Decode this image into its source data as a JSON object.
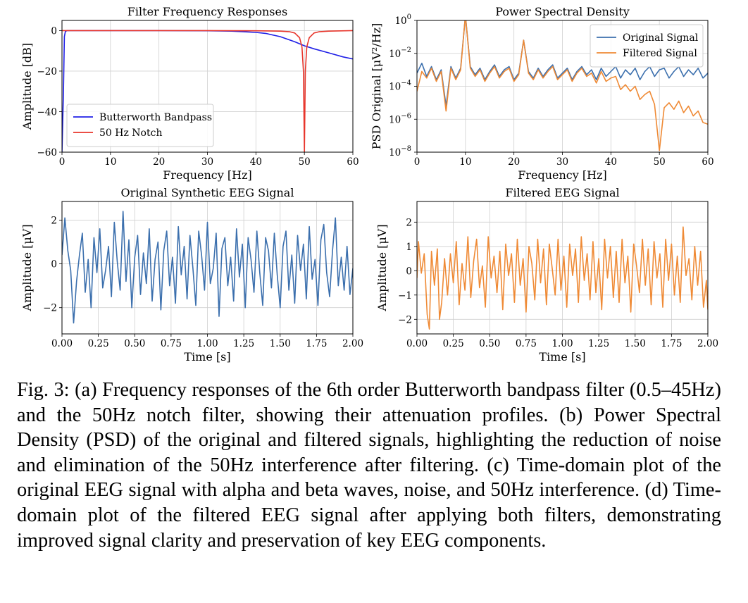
{
  "caption": "Fig. 3: (a) Frequency responses of the 6th order Butterworth bandpass filter (0.5–45Hz) and the 50Hz notch filter, showing their attenuation profiles. (b) Power Spectral Density (PSD) of the original and filtered signals, highlighting the reduction of noise and elimination of the 50Hz interference after filtering. (c) Time-domain plot of the original EEG signal with alpha and beta waves, noise, and 50Hz interference. (d) Time-domain plot of the filtered EEG signal after applying both filters, demonstrating improved signal clarity and preservation of key EEG components.",
  "colors": {
    "butterworth": "#1f1fe6",
    "notch": "#e8362c",
    "original": "#3b6fad",
    "filtered": "#ef8a35",
    "grid": "#d0d0d0"
  },
  "chart_data": [
    {
      "id": "a",
      "type": "line",
      "title": "Filter Frequency Responses",
      "xlabel": "Frequency [Hz]",
      "ylabel": "Amplitude [dB]",
      "xlim": [
        0,
        60
      ],
      "ylim": [
        -60,
        5
      ],
      "xticks": [
        0,
        10,
        20,
        30,
        40,
        50,
        60
      ],
      "xticklabels": [
        "0",
        "10",
        "20",
        "30",
        "40",
        "50",
        "60"
      ],
      "yticks": [
        0,
        -20,
        -40,
        -60
      ],
      "yticklabels": [
        "0",
        "−20",
        "−40",
        "−60"
      ],
      "grid": true,
      "legend_position": "lower-left",
      "series": [
        {
          "name": "Butterworth Bandpass",
          "color": "#1f1fe6",
          "x": [
            0,
            0.3,
            0.5,
            0.7,
            1,
            2,
            5,
            10,
            20,
            30,
            35,
            40,
            42,
            45,
            48,
            50,
            52,
            55,
            58,
            60
          ],
          "y": [
            -60,
            -30,
            -3,
            -0.5,
            0,
            0,
            0,
            0,
            0,
            -0.1,
            -0.3,
            -0.9,
            -1.4,
            -3,
            -5.5,
            -7.5,
            -9,
            -11,
            -13,
            -14
          ]
        },
        {
          "name": "50 Hz Notch",
          "color": "#e8362c",
          "x": [
            0,
            10,
            20,
            30,
            40,
            45,
            47,
            48,
            49,
            49.5,
            49.8,
            50,
            50.2,
            50.5,
            51,
            52,
            53,
            55,
            60
          ],
          "y": [
            0,
            0,
            0,
            0,
            -0.1,
            -0.3,
            -0.6,
            -1.2,
            -3.5,
            -8,
            -20,
            -60,
            -20,
            -8,
            -3.5,
            -1.2,
            -0.6,
            -0.3,
            0
          ]
        }
      ]
    },
    {
      "id": "b",
      "type": "line",
      "title": "Power Spectral Density",
      "xlabel": "Frequency [Hz]",
      "ylabel": "PSD Original [μV²/Hz]",
      "xlim": [
        0,
        60
      ],
      "ylim_log10": [
        -8,
        0
      ],
      "log_y": true,
      "xticks": [
        0,
        10,
        20,
        30,
        40,
        50,
        60
      ],
      "xticklabels": [
        "0",
        "10",
        "20",
        "30",
        "40",
        "50",
        "60"
      ],
      "yticks_log10": [
        0,
        -2,
        -4,
        -6,
        -8
      ],
      "ytick_bases": [
        "10",
        "10",
        "10",
        "10",
        "10"
      ],
      "ytick_exps": [
        "0",
        "−2",
        "−4",
        "−6",
        "−8"
      ],
      "grid": true,
      "legend_position": "top-right",
      "series": [
        {
          "name": "Original Signal",
          "color": "#3b6fad",
          "x": [
            0,
            1,
            2,
            3,
            4,
            5,
            6,
            7,
            8,
            9,
            10,
            11,
            12,
            13,
            14,
            15,
            16,
            17,
            18,
            19,
            20,
            21,
            22,
            23,
            24,
            25,
            26,
            27,
            28,
            29,
            30,
            31,
            32,
            33,
            34,
            35,
            36,
            37,
            38,
            39,
            40,
            41,
            42,
            43,
            44,
            45,
            46,
            47,
            48,
            49,
            50,
            51,
            52,
            53,
            54,
            55,
            56,
            57,
            58,
            59,
            60
          ],
          "log10_psd": [
            -3.2,
            -2.6,
            -3.4,
            -2.8,
            -3.6,
            -3.0,
            -5.2,
            -2.8,
            -3.5,
            -2.9,
            0.3,
            -2.8,
            -3.3,
            -2.9,
            -3.6,
            -3.1,
            -2.7,
            -3.4,
            -3.0,
            -2.8,
            -3.6,
            -3.2,
            -1.2,
            -3.1,
            -3.5,
            -2.9,
            -3.4,
            -3.0,
            -2.7,
            -3.5,
            -3.2,
            -2.9,
            -3.6,
            -3.1,
            -2.8,
            -3.3,
            -3.0,
            -3.6,
            -2.9,
            -3.4,
            -3.1,
            -2.8,
            -3.5,
            -3.0,
            -3.3,
            -2.9,
            -3.6,
            -3.1,
            -2.8,
            -3.4,
            -3.0,
            -2.9,
            -3.5,
            -3.1,
            -2.8,
            -3.4,
            -3.0,
            -3.3,
            -2.9,
            -3.5,
            -3.2
          ]
        },
        {
          "name": "Filtered Signal",
          "color": "#ef8a35",
          "x": [
            0,
            1,
            2,
            3,
            4,
            5,
            6,
            7,
            8,
            9,
            10,
            11,
            12,
            13,
            14,
            15,
            16,
            17,
            18,
            19,
            20,
            21,
            22,
            23,
            24,
            25,
            26,
            27,
            28,
            29,
            30,
            31,
            32,
            33,
            34,
            35,
            36,
            37,
            38,
            39,
            40,
            41,
            42,
            43,
            44,
            45,
            46,
            47,
            48,
            49,
            50,
            51,
            52,
            53,
            54,
            55,
            56,
            57,
            58,
            59,
            60
          ],
          "log10_psd": [
            -4.3,
            -3.1,
            -3.5,
            -2.9,
            -3.7,
            -3.1,
            -5.5,
            -2.9,
            -3.6,
            -3.0,
            0.3,
            -2.9,
            -3.4,
            -3.0,
            -3.7,
            -3.2,
            -2.8,
            -3.5,
            -3.1,
            -2.9,
            -3.7,
            -3.3,
            -1.2,
            -3.2,
            -3.6,
            -3.0,
            -3.5,
            -3.1,
            -2.8,
            -3.6,
            -3.3,
            -3.0,
            -3.7,
            -3.2,
            -2.9,
            -3.4,
            -3.2,
            -3.8,
            -3.1,
            -3.7,
            -3.5,
            -3.4,
            -4.2,
            -3.9,
            -4.3,
            -4.0,
            -4.8,
            -4.5,
            -4.3,
            -5.1,
            -7.9,
            -5.3,
            -5.0,
            -5.4,
            -4.9,
            -5.6,
            -5.2,
            -5.8,
            -5.5,
            -6.2,
            -6.3
          ]
        }
      ]
    },
    {
      "id": "c",
      "type": "line",
      "title": "Original Synthetic EEG Signal",
      "xlabel": "Time [s]",
      "ylabel": "Amplitude [μV]",
      "xlim": [
        0,
        2
      ],
      "ylim": [
        -3.2,
        2.85
      ],
      "xticks": [
        0,
        0.25,
        0.5,
        0.75,
        1,
        1.25,
        1.5,
        1.75,
        2
      ],
      "xticklabels": [
        "0.00",
        "0.25",
        "0.50",
        "0.75",
        "1.00",
        "1.25",
        "1.50",
        "1.75",
        "2.00"
      ],
      "yticks": [
        2,
        0,
        -2
      ],
      "yticklabels": [
        "2",
        "0",
        "−2"
      ],
      "grid": true,
      "series": [
        {
          "name": "",
          "color": "#3b6fad",
          "x": [
            0,
            0.02,
            0.04,
            0.06,
            0.08,
            0.1,
            0.12,
            0.14,
            0.16,
            0.18,
            0.2,
            0.22,
            0.24,
            0.26,
            0.28,
            0.3,
            0.32,
            0.34,
            0.36,
            0.38,
            0.4,
            0.42,
            0.44,
            0.46,
            0.48,
            0.5,
            0.52,
            0.54,
            0.56,
            0.58,
            0.6,
            0.62,
            0.64,
            0.66,
            0.68,
            0.7,
            0.72,
            0.74,
            0.76,
            0.78,
            0.8,
            0.82,
            0.84,
            0.86,
            0.88,
            0.9,
            0.92,
            0.94,
            0.96,
            0.98,
            1,
            1.02,
            1.04,
            1.06,
            1.08,
            1.1,
            1.12,
            1.14,
            1.16,
            1.18,
            1.2,
            1.22,
            1.24,
            1.26,
            1.28,
            1.3,
            1.32,
            1.34,
            1.36,
            1.38,
            1.4,
            1.42,
            1.44,
            1.46,
            1.48,
            1.5,
            1.52,
            1.54,
            1.56,
            1.58,
            1.6,
            1.62,
            1.64,
            1.66,
            1.68,
            1.7,
            1.72,
            1.74,
            1.76,
            1.78,
            1.8,
            1.82,
            1.84,
            1.86,
            1.88,
            1.9,
            1.92,
            1.94,
            1.96,
            1.98,
            2
          ],
          "y": [
            0.4,
            2.1,
            0.6,
            -0.3,
            -2.7,
            -0.8,
            0.4,
            1.4,
            -1.3,
            0.2,
            -2.0,
            1.2,
            -0.4,
            1.6,
            -1.1,
            -0.3,
            0.8,
            -1.5,
            1.9,
            0.1,
            -1.2,
            2.4,
            -0.8,
            1.1,
            -2.0,
            0.3,
            1.3,
            -1.4,
            0.5,
            -0.9,
            1.6,
            -1.7,
            0.2,
            1.0,
            -2.1,
            0.6,
            1.5,
            -1.0,
            0.3,
            -1.8,
            1.7,
            -0.5,
            0.8,
            -1.6,
            1.3,
            -0.2,
            -1.9,
            1.5,
            0.4,
            -1.2,
            1.9,
            -0.9,
            -0.2,
            1.4,
            -2.4,
            0.7,
            1.2,
            -1.0,
            0.3,
            -1.7,
            1.6,
            -0.6,
            0.9,
            -2.0,
            1.2,
            0.2,
            -1.3,
            1.5,
            -0.4,
            -1.9,
            1.2,
            0.6,
            -1.1,
            1.4,
            -0.5,
            -2.0,
            0.8,
            1.5,
            -1.2,
            0.4,
            -1.8,
            1.3,
            -0.3,
            0.9,
            -1.6,
            1.7,
            -0.7,
            0.2,
            -1.9,
            1.1,
            1.8,
            -0.4,
            -1.5,
            0.6,
            2.1,
            -1.0,
            0.3,
            -1.2,
            0.8,
            -1.4,
            -0.2
          ]
        }
      ]
    },
    {
      "id": "d",
      "type": "line",
      "title": "Filtered EEG Signal",
      "xlabel": "Time [s]",
      "ylabel": "Amplitude [μV]",
      "xlim": [
        0,
        2
      ],
      "ylim": [
        -2.6,
        2.85
      ],
      "xticks": [
        0,
        0.25,
        0.5,
        0.75,
        1,
        1.25,
        1.5,
        1.75,
        2
      ],
      "xticklabels": [
        "0.00",
        "0.25",
        "0.50",
        "0.75",
        "1.00",
        "1.25",
        "1.50",
        "1.75",
        "2.00"
      ],
      "yticks": [
        2,
        1,
        0,
        -1,
        -2
      ],
      "yticklabels": [
        "2",
        "1",
        "0",
        "−1",
        "−2"
      ],
      "grid": true,
      "series": [
        {
          "name": "",
          "color": "#ef8a35",
          "x": [
            0,
            0.01,
            0.03,
            0.05,
            0.07,
            0.085,
            0.1,
            0.12,
            0.14,
            0.155,
            0.17,
            0.19,
            0.21,
            0.23,
            0.25,
            0.27,
            0.29,
            0.31,
            0.33,
            0.35,
            0.37,
            0.39,
            0.41,
            0.43,
            0.45,
            0.47,
            0.49,
            0.51,
            0.53,
            0.55,
            0.57,
            0.59,
            0.61,
            0.63,
            0.65,
            0.67,
            0.69,
            0.71,
            0.73,
            0.75,
            0.77,
            0.79,
            0.81,
            0.83,
            0.85,
            0.87,
            0.89,
            0.91,
            0.93,
            0.95,
            0.97,
            0.99,
            1.01,
            1.03,
            1.05,
            1.07,
            1.09,
            1.11,
            1.13,
            1.15,
            1.17,
            1.19,
            1.21,
            1.23,
            1.25,
            1.27,
            1.29,
            1.31,
            1.33,
            1.35,
            1.37,
            1.39,
            1.41,
            1.43,
            1.45,
            1.47,
            1.49,
            1.51,
            1.53,
            1.55,
            1.57,
            1.59,
            1.61,
            1.63,
            1.65,
            1.67,
            1.69,
            1.71,
            1.73,
            1.75,
            1.77,
            1.79,
            1.81,
            1.83,
            1.85,
            1.87,
            1.89,
            1.91,
            1.93,
            1.95,
            1.97,
            1.99,
            2
          ],
          "y": [
            -0.3,
            1.2,
            -0.1,
            0.7,
            -1.8,
            -2.4,
            0.8,
            -0.6,
            0.9,
            -2.0,
            -1.3,
            0.5,
            -1.0,
            0.7,
            -0.5,
            1.2,
            -1.4,
            0.3,
            -0.8,
            1.4,
            -1.1,
            0.4,
            1.3,
            -0.7,
            0.2,
            -1.5,
            1.4,
            -0.3,
            0.6,
            -0.9,
            0.8,
            -1.6,
            1.1,
            -0.2,
            0.7,
            -1.3,
            1.3,
            -0.6,
            0.5,
            -1.7,
            1.0,
            0.3,
            -1.2,
            1.3,
            -0.5,
            0.9,
            -1.4,
            1.1,
            0.1,
            -1.0,
            1.3,
            -0.8,
            0.6,
            -1.5,
            1.1,
            -0.2,
            0.9,
            -1.3,
            1.4,
            -0.4,
            0.7,
            -1.2,
            1.2,
            -0.9,
            0.5,
            -1.6,
            1.3,
            -0.3,
            1.0,
            -1.1,
            0.8,
            -1.3,
            1.3,
            -0.5,
            0.6,
            -1.7,
            1.1,
            0.2,
            -0.9,
            1.3,
            -0.6,
            0.9,
            -1.4,
            1.2,
            -0.3,
            0.7,
            -1.5,
            1.3,
            -0.4,
            1.1,
            -1.0,
            0.6,
            -1.3,
            1.8,
            -0.2,
            0.5,
            -1.2,
            1.0,
            -0.6,
            0.8,
            -1.5,
            -0.4,
            -1.6
          ]
        }
      ]
    }
  ]
}
